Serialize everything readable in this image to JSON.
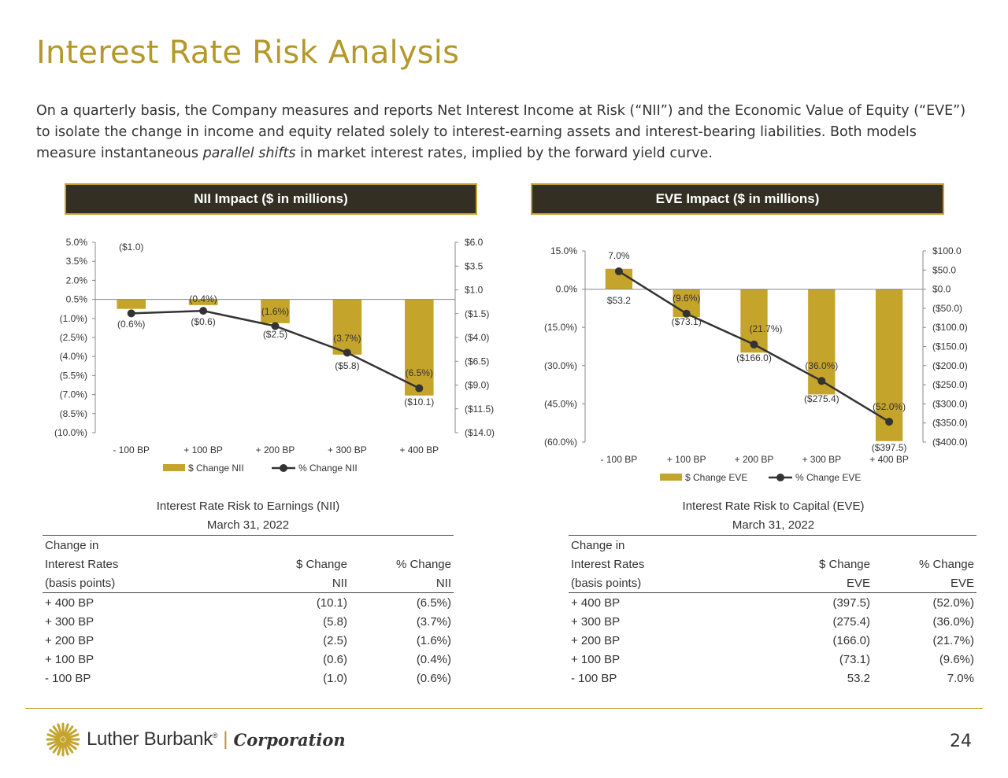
{
  "page": {
    "title": "Interest Rate Risk Analysis",
    "intro_before": "On a quarterly basis, the Company measures and reports Net Interest Income at Risk (“NII”) and the Economic Value of Equity (“EVE”) to isolate the change in income and equity related solely to interest-earning assets and interest-bearing liabilities. Both models measure instantaneous ",
    "intro_em": "parallel shifts",
    "intro_after": " in market interest rates, implied by the forward yield curve.",
    "page_number": "24"
  },
  "banners": {
    "nii": "NII Impact ($ in millions)",
    "eve": "EVE Impact ($ in millions)"
  },
  "colors": {
    "gold": "#c5a42c",
    "dark": "#332f22",
    "line": "#333333"
  },
  "chart_data": [
    {
      "type": "bar",
      "categories": [
        "- 100 BP",
        "+ 100 BP",
        "+ 200 BP",
        "+ 300 BP",
        "+ 400 BP"
      ],
      "series": [
        {
          "name": "$ Change NII",
          "type": "bar",
          "axis": "right",
          "values": [
            -1.0,
            -0.6,
            -2.5,
            -5.8,
            -10.1
          ],
          "labels": [
            "($1.0)",
            "($0.6)",
            "($2.5)",
            "($5.8)",
            "($10.1)"
          ]
        },
        {
          "name": "% Change NII",
          "type": "line",
          "axis": "left",
          "values": [
            -0.6,
            -0.4,
            -1.6,
            -3.7,
            -6.5
          ],
          "labels": [
            "(0.6%)",
            "(0.4%)",
            "(1.6%)",
            "(3.7%)",
            "(6.5%)"
          ]
        }
      ],
      "left_axis": {
        "min": -10.0,
        "max": 5.0,
        "ticks": [
          "5.0%",
          "3.5%",
          "2.0%",
          "0.5%",
          "(1.0%)",
          "(2.5%)",
          "(4.0%)",
          "(5.5%)",
          "(7.0%)",
          "(8.5%)",
          "(10.0%)"
        ]
      },
      "right_axis": {
        "min": -14.0,
        "max": 6.0,
        "ticks": [
          "$6.0",
          "$3.5",
          "$1.0",
          "($1.5)",
          "($4.0)",
          "($6.5)",
          "($9.0)",
          "($11.5)",
          "($14.0)"
        ]
      },
      "legend": "bottom"
    },
    {
      "type": "bar",
      "categories": [
        "- 100 BP",
        "+ 100 BP",
        "+ 200 BP",
        "+ 300 BP",
        "+ 400 BP"
      ],
      "series": [
        {
          "name": "$ Change EVE",
          "type": "bar",
          "axis": "right",
          "values": [
            53.2,
            -73.1,
            -166.0,
            -275.4,
            -397.5
          ],
          "labels": [
            "$53.2",
            "($73.1)",
            "($166.0)",
            "($275.4)",
            "($397.5)"
          ]
        },
        {
          "name": "% Change EVE",
          "type": "line",
          "axis": "left",
          "values": [
            7.0,
            -9.6,
            -21.7,
            -36.0,
            -52.0
          ],
          "labels": [
            "7.0%",
            "(9.6%)",
            "(21.7%)",
            "(36.0%)",
            "(52.0%)"
          ]
        }
      ],
      "left_axis": {
        "min": -60.0,
        "max": 15.0,
        "ticks": [
          "15.0%",
          "0.0%",
          "(15.0%)",
          "(30.0%)",
          "(45.0%)",
          "(60.0%)"
        ]
      },
      "right_axis": {
        "min": -400.0,
        "max": 100.0,
        "ticks": [
          "$100.0",
          "$50.0",
          "$0.0",
          "($50.0)",
          "($100.0)",
          "($150.0)",
          "($200.0)",
          "($250.0)",
          "($300.0)",
          "($350.0)",
          "($400.0)"
        ]
      },
      "legend": "bottom"
    }
  ],
  "tables": {
    "nii": {
      "title": "Interest Rate Risk to Earnings (NII)",
      "date": "March 31, 2022",
      "header": [
        [
          "Change in",
          "",
          ""
        ],
        [
          "Interest Rates",
          "$ Change",
          "% Change"
        ],
        [
          "(basis points)",
          "NII",
          "NII"
        ]
      ],
      "rows": [
        [
          "+ 400 BP",
          "(10.1)",
          "(6.5%)"
        ],
        [
          "+ 300 BP",
          "(5.8)",
          "(3.7%)"
        ],
        [
          "+ 200 BP",
          "(2.5)",
          "(1.6%)"
        ],
        [
          "+ 100 BP",
          "(0.6)",
          "(0.4%)"
        ],
        [
          "- 100 BP",
          "(1.0)",
          "(0.6%)"
        ]
      ]
    },
    "eve": {
      "title": "Interest Rate Risk to Capital (EVE)",
      "date": "March 31, 2022",
      "header": [
        [
          "Change in",
          "",
          ""
        ],
        [
          "Interest Rates",
          "$ Change",
          "% Change"
        ],
        [
          "(basis points)",
          "EVE",
          "EVE"
        ]
      ],
      "rows": [
        [
          "+ 400 BP",
          "(397.5)",
          "(52.0%)"
        ],
        [
          "+ 300 BP",
          "(275.4)",
          "(36.0%)"
        ],
        [
          "+ 200 BP",
          "(166.0)",
          "(21.7%)"
        ],
        [
          "+ 100 BP",
          "(73.1)",
          "(9.6%)"
        ],
        [
          "- 100 BP",
          "53.2",
          "7.0%"
        ]
      ]
    }
  },
  "footer": {
    "logo_name": "Luther Burbank",
    "logo_reg": "®",
    "logo_separator": "|",
    "logo_corp": "Corporation",
    "logo_icon": "sunburst-icon"
  }
}
